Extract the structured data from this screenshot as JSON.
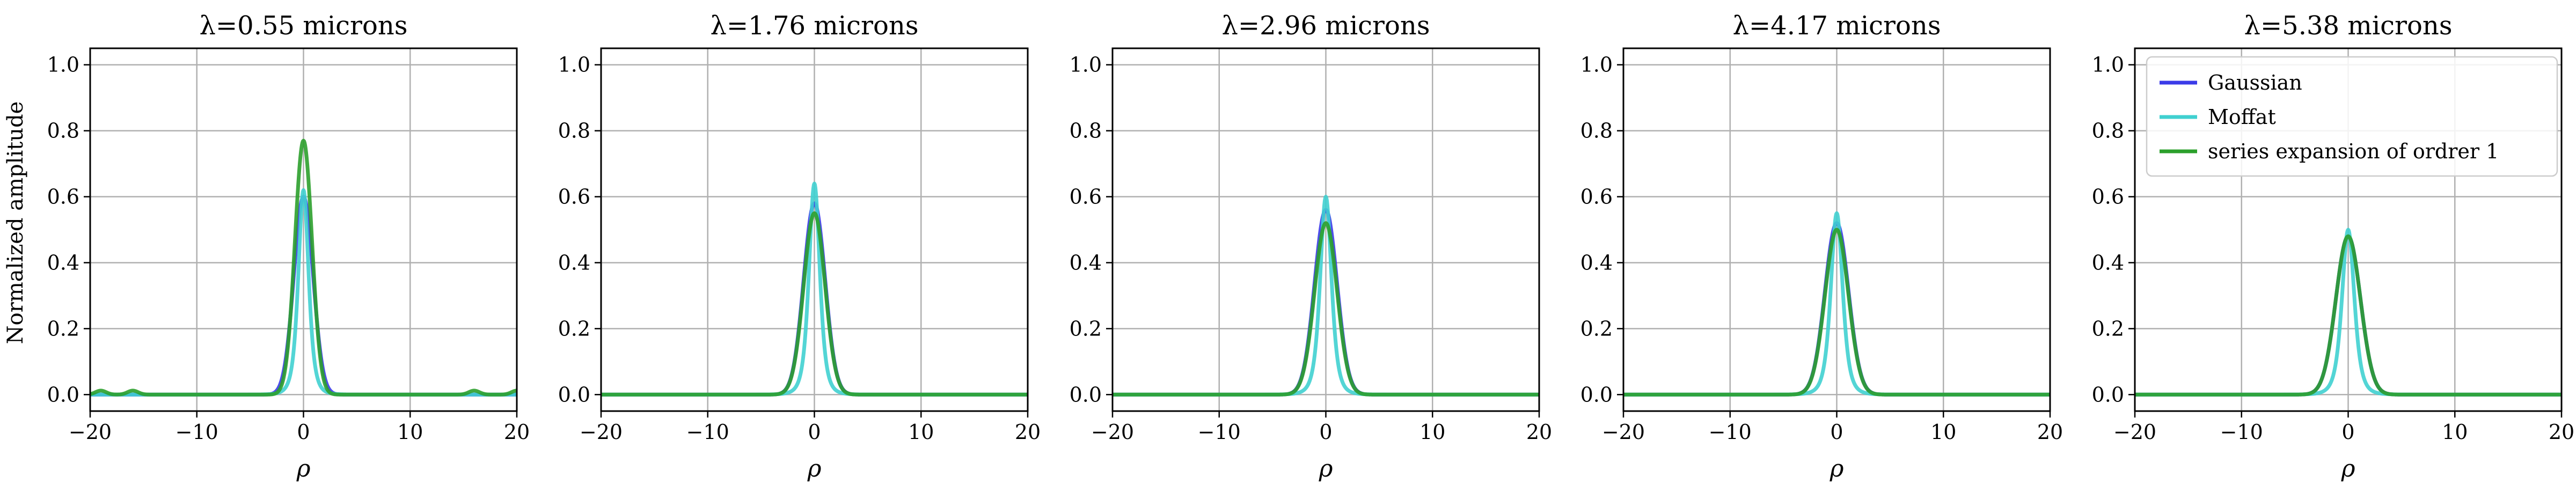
{
  "colors": {
    "gaussian": "#3b3be8",
    "moffat": "#40d0d0",
    "series": "#2ca02c",
    "grid": "#b0b0b0"
  },
  "legend": {
    "placement": "top-right of last panel",
    "entries": [
      "Gaussian",
      "Moffat",
      "series expansion of ordrer 1"
    ]
  },
  "chart_data": [
    {
      "type": "line",
      "title": "λ=0.55 microns",
      "xlabel": "ρ",
      "ylabel": "Normalized amplitude",
      "xlim": [
        -20,
        20
      ],
      "ylim": [
        -0.05,
        1.05
      ],
      "xticks": [
        -20,
        -10,
        0,
        10,
        20
      ],
      "yticks": [
        0.0,
        0.2,
        0.4,
        0.6,
        0.8,
        1.0
      ],
      "grid": true,
      "series": [
        {
          "name": "Gaussian",
          "peak": 0.6,
          "width": 0.9
        },
        {
          "name": "Moffat",
          "peak": 0.62,
          "width": 1.0
        },
        {
          "name": "series expansion of ordrer 1",
          "peak": 0.77,
          "width": 0.8,
          "side_bumps": [
            -19,
            -16,
            16,
            20
          ]
        }
      ]
    },
    {
      "type": "line",
      "title": "λ=1.76 microns",
      "xlabel": "ρ",
      "xlim": [
        -20,
        20
      ],
      "ylim": [
        -0.05,
        1.05
      ],
      "xticks": [
        -20,
        -10,
        0,
        10,
        20
      ],
      "yticks": [
        0.0,
        0.2,
        0.4,
        0.6,
        0.8,
        1.0
      ],
      "grid": true,
      "series": [
        {
          "name": "Gaussian",
          "peak": 0.58,
          "width": 1.0
        },
        {
          "name": "Moffat",
          "peak": 0.64,
          "width": 1.05
        },
        {
          "name": "series expansion of ordrer 1",
          "peak": 0.55,
          "width": 1.0
        }
      ]
    },
    {
      "type": "line",
      "title": "λ=2.96 microns",
      "xlabel": "ρ",
      "xlim": [
        -20,
        20
      ],
      "ylim": [
        -0.05,
        1.05
      ],
      "xticks": [
        -20,
        -10,
        0,
        10,
        20
      ],
      "yticks": [
        0.0,
        0.2,
        0.4,
        0.6,
        0.8,
        1.0
      ],
      "grid": true,
      "series": [
        {
          "name": "Gaussian",
          "peak": 0.56,
          "width": 1.05
        },
        {
          "name": "Moffat",
          "peak": 0.6,
          "width": 1.1
        },
        {
          "name": "series expansion of ordrer 1",
          "peak": 0.52,
          "width": 1.05
        }
      ]
    },
    {
      "type": "line",
      "title": "λ=4.17 microns",
      "xlabel": "ρ",
      "xlim": [
        -20,
        20
      ],
      "ylim": [
        -0.05,
        1.05
      ],
      "xticks": [
        -20,
        -10,
        0,
        10,
        20
      ],
      "yticks": [
        0.0,
        0.2,
        0.4,
        0.6,
        0.8,
        1.0
      ],
      "grid": true,
      "series": [
        {
          "name": "Gaussian",
          "peak": 0.52,
          "width": 1.1
        },
        {
          "name": "Moffat",
          "peak": 0.55,
          "width": 1.15
        },
        {
          "name": "series expansion of ordrer 1",
          "peak": 0.5,
          "width": 1.1
        }
      ]
    },
    {
      "type": "line",
      "title": "λ=5.38 microns",
      "xlabel": "ρ",
      "xlim": [
        -20,
        20
      ],
      "ylim": [
        -0.05,
        1.05
      ],
      "xticks": [
        -20,
        -10,
        0,
        10,
        20
      ],
      "yticks": [
        0.0,
        0.2,
        0.4,
        0.6,
        0.8,
        1.0
      ],
      "grid": true,
      "series": [
        {
          "name": "Gaussian",
          "peak": 0.48,
          "width": 1.15
        },
        {
          "name": "Moffat",
          "peak": 0.5,
          "width": 1.2
        },
        {
          "name": "series expansion of ordrer 1",
          "peak": 0.48,
          "width": 1.15
        }
      ]
    }
  ]
}
